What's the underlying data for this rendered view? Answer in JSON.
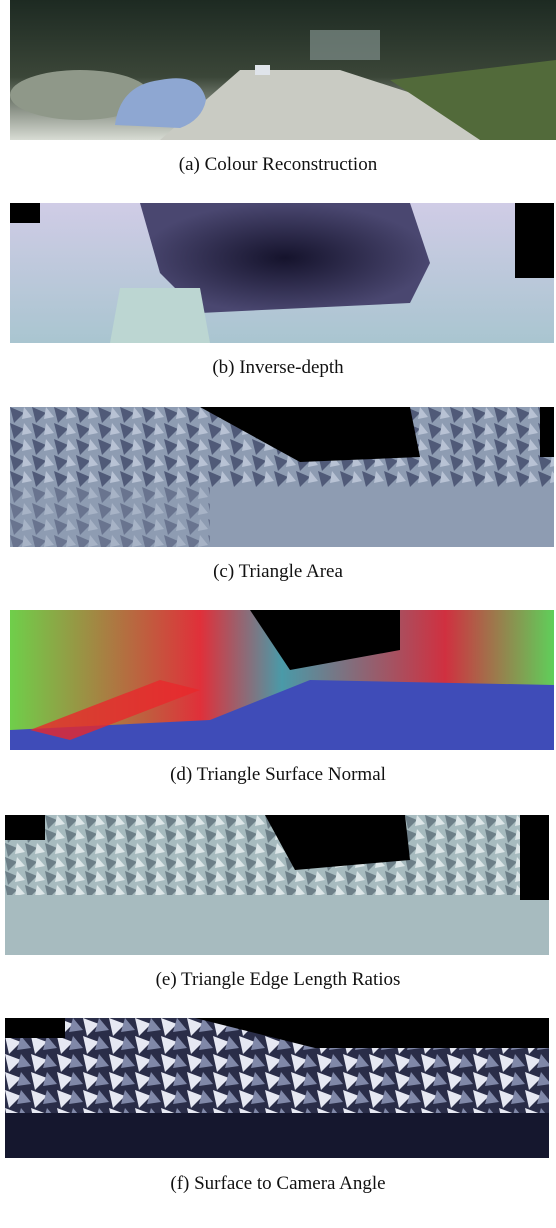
{
  "panels": [
    {
      "caption": "(a)  Colour Reconstruction"
    },
    {
      "caption": "(b)  Inverse-depth"
    },
    {
      "caption": "(c)  Triangle Area"
    },
    {
      "caption": "(d)  Triangle Surface Normal"
    },
    {
      "caption": "(e)  Triangle Edge Length Ratios"
    },
    {
      "caption": "(f)  Surface to Camera Angle"
    }
  ]
}
